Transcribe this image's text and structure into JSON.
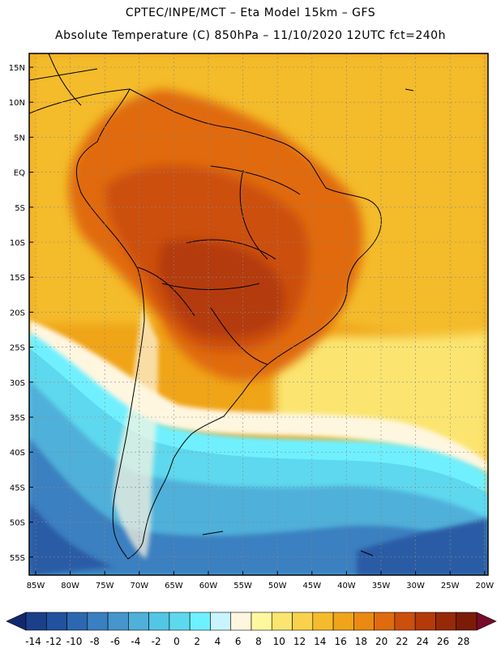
{
  "title": {
    "line1": "CPTEC/INPE/MCT –   Eta Model 15km – GFS",
    "line2": "Absolute Temperature (C) 850hPa – 11/10/2020 12UTC fct=240h"
  },
  "lat_labels": [
    "15N",
    "10N",
    "5N",
    "EQ",
    "5S",
    "10S",
    "15S",
    "20S",
    "25S",
    "30S",
    "35S",
    "40S",
    "45S",
    "50S",
    "55S"
  ],
  "lon_labels": [
    "85W",
    "80W",
    "75W",
    "70W",
    "65W",
    "60W",
    "55W",
    "50W",
    "45W",
    "40W",
    "35W",
    "30W",
    "25W",
    "20W"
  ],
  "colorbar": {
    "labels": [
      "-14",
      "-12",
      "-10",
      "-8",
      "-6",
      "-4",
      "-2",
      "0",
      "2",
      "4",
      "6",
      "8",
      "10",
      "12",
      "14",
      "16",
      "18",
      "20",
      "22",
      "24",
      "26",
      "28"
    ],
    "colors": [
      "#1c3f8a",
      "#22529e",
      "#2c68b0",
      "#3a80c0",
      "#4596cc",
      "#4fb0da",
      "#52c6e4",
      "#5ed8ee",
      "#6ff0ff",
      "#c8f4ff",
      "#fff6e0",
      "#fdf7a0",
      "#fbe570",
      "#f8d24c",
      "#f4bb2c",
      "#f0a418",
      "#ea8a12",
      "#e06a0e",
      "#cc4f0c",
      "#b43a0a",
      "#962a08",
      "#7a1c08"
    ],
    "left_arrow_color": "#12286e",
    "right_arrow_color": "#7a0a2a"
  },
  "map_colors": {
    "deep_ocean": "#2a5ca6",
    "cold_ocean": "#3a80c0",
    "cool_ocean": "#4fb0da",
    "cold_band": "#5ed8ee",
    "cyan": "#6ff0ff",
    "pale": "#fff6e0",
    "yellow": "#fbe570",
    "gold": "#f4bb2c",
    "orange": "#f0a418",
    "dark_orange": "#e06a0e",
    "rust": "#cc4f0c",
    "brown": "#b43a0a"
  }
}
